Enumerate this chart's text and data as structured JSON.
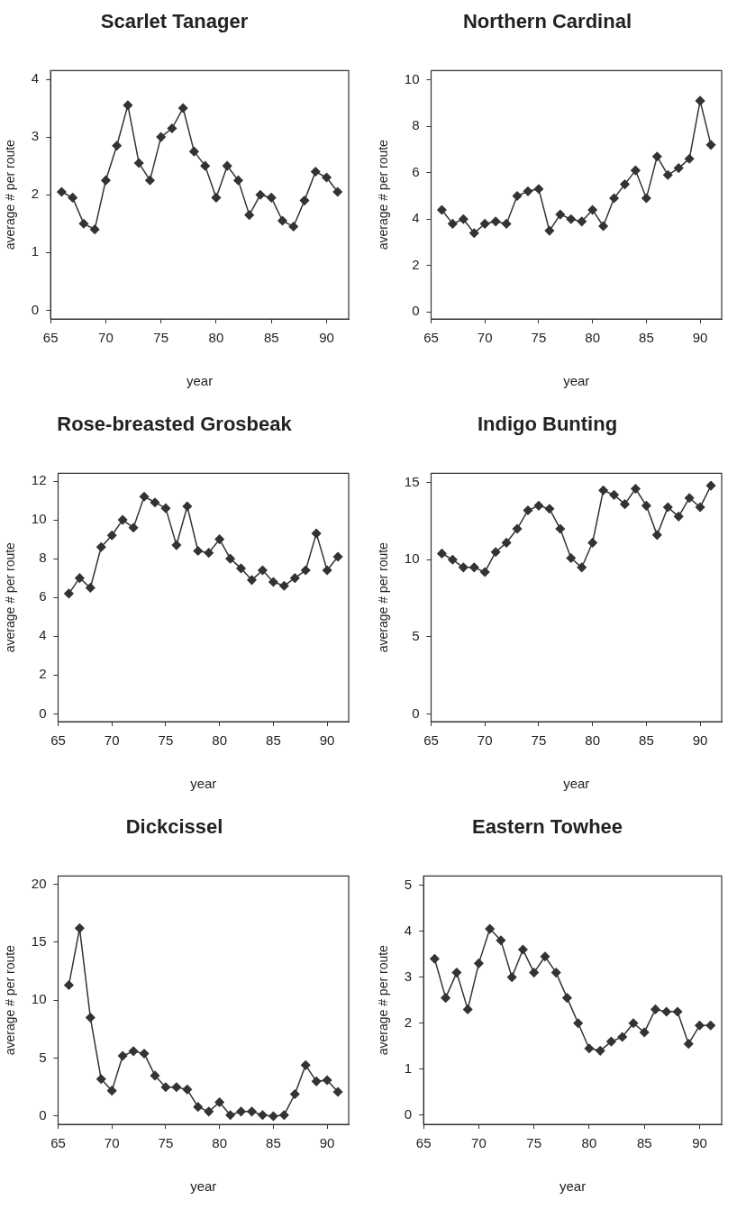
{
  "chart_data": [
    {
      "type": "line",
      "title": "Scarlet Tanager",
      "xlabel": "year",
      "ylabel": "average # per route",
      "x": [
        66,
        67,
        68,
        69,
        70,
        71,
        72,
        73,
        74,
        75,
        76,
        77,
        78,
        79,
        80,
        81,
        82,
        83,
        84,
        85,
        86,
        87,
        88,
        89,
        90,
        91
      ],
      "series": [
        {
          "color": "#333333",
          "values": [
            2.05,
            1.95,
            1.5,
            1.4,
            2.25,
            2.85,
            3.55,
            2.55,
            2.25,
            3.0,
            3.15,
            3.5,
            2.75,
            2.5,
            1.95,
            2.5,
            2.25,
            1.65,
            2.0,
            1.95,
            1.55,
            1.45,
            1.9,
            2.4,
            2.3,
            2.05
          ]
        }
      ],
      "xlim": [
        65,
        92
      ],
      "xticks": [
        65,
        70,
        75,
        80,
        85,
        90
      ],
      "ylim": [
        -0.15,
        4.15
      ],
      "yticks": [
        0,
        1,
        2,
        3,
        4
      ],
      "marker": "diamond",
      "grid": false,
      "legend": false
    },
    {
      "type": "line",
      "title": "Northern Cardinal",
      "xlabel": "year",
      "ylabel": "average # per route",
      "x": [
        66,
        67,
        68,
        69,
        70,
        71,
        72,
        73,
        74,
        75,
        76,
        77,
        78,
        79,
        80,
        81,
        82,
        83,
        84,
        85,
        86,
        87,
        88,
        89,
        90,
        91
      ],
      "series": [
        {
          "color": "#333333",
          "values": [
            4.4,
            3.8,
            4.0,
            3.4,
            3.8,
            3.9,
            3.8,
            5.0,
            5.2,
            5.3,
            3.5,
            4.2,
            4.0,
            3.9,
            4.4,
            3.7,
            4.9,
            5.5,
            6.1,
            4.9,
            6.7,
            5.9,
            6.2,
            6.6,
            9.1,
            7.2
          ]
        }
      ],
      "xlim": [
        65,
        92
      ],
      "xticks": [
        65,
        70,
        75,
        80,
        85,
        90
      ],
      "ylim": [
        -0.3,
        10.4
      ],
      "yticks": [
        0,
        2,
        4,
        6,
        8,
        10
      ],
      "marker": "diamond",
      "grid": false,
      "legend": false
    },
    {
      "type": "line",
      "title": "Rose-breasted Grosbeak",
      "xlabel": "year",
      "ylabel": "average # per route",
      "x": [
        66,
        67,
        68,
        69,
        70,
        71,
        72,
        73,
        74,
        75,
        76,
        77,
        78,
        79,
        80,
        81,
        82,
        83,
        84,
        85,
        86,
        87,
        88,
        89,
        90,
        91
      ],
      "series": [
        {
          "color": "#333333",
          "values": [
            6.2,
            7.0,
            6.5,
            8.6,
            9.2,
            10.0,
            9.6,
            11.2,
            10.9,
            10.6,
            8.7,
            10.7,
            8.4,
            8.3,
            9.0,
            8.0,
            7.5,
            6.9,
            7.4,
            6.8,
            6.6,
            7.0,
            7.4,
            9.3,
            7.4,
            8.1
          ]
        }
      ],
      "xlim": [
        65,
        92
      ],
      "xticks": [
        65,
        70,
        75,
        80,
        85,
        90
      ],
      "ylim": [
        -0.4,
        12.4
      ],
      "yticks": [
        0,
        2,
        4,
        6,
        8,
        10,
        12
      ],
      "marker": "diamond",
      "grid": false,
      "legend": false
    },
    {
      "type": "line",
      "title": "Indigo Bunting",
      "xlabel": "year",
      "ylabel": "average # per route",
      "x": [
        66,
        67,
        68,
        69,
        70,
        71,
        72,
        73,
        74,
        75,
        76,
        77,
        78,
        79,
        80,
        81,
        82,
        83,
        84,
        85,
        86,
        87,
        88,
        89,
        90,
        91
      ],
      "series": [
        {
          "color": "#333333",
          "values": [
            10.4,
            10.0,
            9.5,
            9.5,
            9.2,
            10.5,
            11.1,
            12.0,
            13.2,
            13.5,
            13.3,
            12.0,
            10.1,
            9.5,
            11.1,
            14.5,
            14.2,
            13.6,
            14.6,
            13.5,
            11.6,
            13.4,
            12.8,
            14.0,
            13.4,
            14.8
          ]
        }
      ],
      "xlim": [
        65,
        92
      ],
      "xticks": [
        65,
        70,
        75,
        80,
        85,
        90
      ],
      "ylim": [
        -0.5,
        15.6
      ],
      "yticks": [
        0,
        5,
        10,
        15
      ],
      "marker": "diamond",
      "grid": false,
      "legend": false
    },
    {
      "type": "line",
      "title": "Dickcissel",
      "xlabel": "year",
      "ylabel": "average # per route",
      "x": [
        66,
        67,
        68,
        69,
        70,
        71,
        72,
        73,
        74,
        75,
        76,
        77,
        78,
        79,
        80,
        81,
        82,
        83,
        84,
        85,
        86,
        87,
        88,
        89,
        90,
        91
      ],
      "series": [
        {
          "color": "#333333",
          "values": [
            11.3,
            16.2,
            8.5,
            3.2,
            2.2,
            5.2,
            5.6,
            5.4,
            3.5,
            2.5,
            2.5,
            2.3,
            0.8,
            0.4,
            1.2,
            0.1,
            0.4,
            0.4,
            0.1,
            0.0,
            0.1,
            1.9,
            4.4,
            3.0,
            3.1,
            2.1
          ]
        }
      ],
      "xlim": [
        65,
        92
      ],
      "xticks": [
        65,
        70,
        75,
        80,
        85,
        90
      ],
      "ylim": [
        -0.7,
        20.7
      ],
      "yticks": [
        0,
        5,
        10,
        15,
        20
      ],
      "marker": "diamond",
      "grid": false,
      "legend": false
    },
    {
      "type": "line",
      "title": "Eastern Towhee",
      "xlabel": "year",
      "ylabel": "average # per route",
      "x": [
        66,
        67,
        68,
        69,
        70,
        71,
        72,
        73,
        74,
        75,
        76,
        77,
        78,
        79,
        80,
        81,
        82,
        83,
        84,
        85,
        86,
        87,
        88,
        89,
        90,
        91
      ],
      "series": [
        {
          "color": "#333333",
          "values": [
            3.4,
            2.55,
            3.1,
            2.3,
            3.3,
            4.05,
            3.8,
            3.0,
            3.6,
            3.1,
            3.45,
            3.1,
            2.55,
            2.0,
            1.45,
            1.4,
            1.6,
            1.7,
            2.0,
            1.8,
            2.3,
            2.25,
            2.25,
            1.55,
            1.95,
            1.95
          ]
        }
      ],
      "xlim": [
        65,
        92
      ],
      "xticks": [
        65,
        70,
        75,
        80,
        85,
        90
      ],
      "ylim": [
        -0.2,
        5.2
      ],
      "yticks": [
        0,
        1,
        2,
        3,
        4,
        5
      ],
      "marker": "diamond",
      "grid": false,
      "legend": false
    }
  ]
}
